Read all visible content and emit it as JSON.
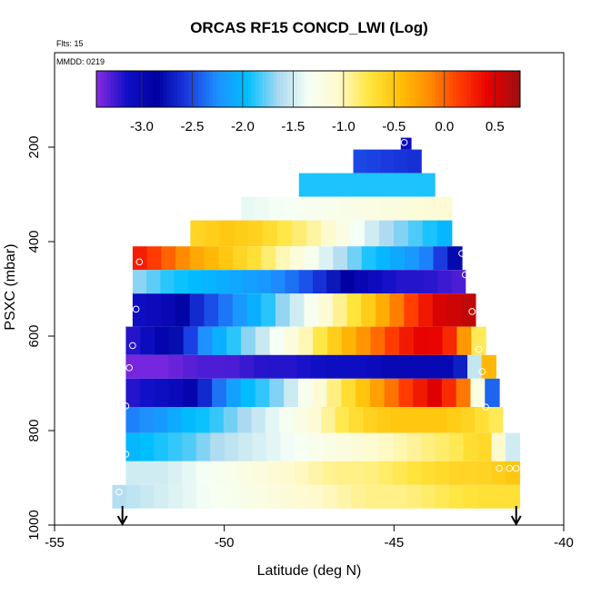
{
  "chart_data": {
    "type": "heatmap",
    "title": "ORCAS RF15 CONCD_LWI (Log)",
    "corner_labels": [
      "Flts: 15",
      "MMDD: 0219"
    ],
    "xlabel": "Latitude (deg N)",
    "ylabel": "PSXC (mbar)",
    "xlim": [
      -55,
      -40
    ],
    "ylim": [
      1000,
      0
    ],
    "x_ticks": [
      -55,
      -50,
      -45,
      -40
    ],
    "y_ticks": [
      200,
      400,
      600,
      800,
      1000
    ],
    "colorbar": {
      "min": -3.45,
      "max": 0.75,
      "ticks": [
        -3.0,
        -2.5,
        -2.0,
        -1.5,
        -1.0,
        -0.5,
        0.0,
        0.5
      ],
      "tick_labels": [
        "-3.0",
        "-2.5",
        "-2.0",
        "-1.5",
        "-1.0",
        "-0.5",
        "0.0",
        "0.5"
      ],
      "colors": [
        "#8a2be2",
        "#1010c8",
        "#0000a0",
        "#1a3ae0",
        "#1e90ff",
        "#00bfff",
        "#a8d8f0",
        "#f5fff5",
        "#fffacd",
        "#ffe640",
        "#ffc107",
        "#ff8c00",
        "#ff3b00",
        "#e60000",
        "#9b1010"
      ]
    },
    "bands": [
      {
        "p": [
          180,
          205
        ],
        "lat": [
          -44.8,
          -44.5
        ],
        "v": [
          -3.1,
          -3.1
        ]
      },
      {
        "p": [
          205,
          255
        ],
        "lat": [
          -46.2,
          -44.2
        ],
        "v": [
          -2.5,
          -2.6
        ]
      },
      {
        "p": [
          255,
          305
        ],
        "lat": [
          -47.8,
          -43.8
        ],
        "v": [
          -1.9,
          -1.9
        ]
      },
      {
        "p": [
          305,
          355
        ],
        "lat": [
          -49.5,
          -43.3
        ],
        "v": [
          -1.4,
          -1.1
        ]
      },
      {
        "p": [
          355,
          410
        ],
        "lat": [
          -51.0,
          -43.3
        ],
        "v": [
          -0.6,
          -0.5,
          -0.6,
          -0.8,
          -1.0,
          -1.3,
          -1.6,
          -1.8,
          -2.0
        ]
      },
      {
        "p": [
          410,
          460
        ],
        "lat": [
          -52.7,
          -43.0
        ],
        "v": [
          0.3,
          0.0,
          -0.3,
          -0.5,
          -0.7,
          -1.0,
          -1.3,
          -1.6,
          -1.9,
          -2.1,
          -2.3,
          -2.8
        ]
      },
      {
        "p": [
          460,
          510
        ],
        "lat": [
          -52.7,
          -42.9
        ],
        "v": [
          -1.7,
          -1.9,
          -2.0,
          -2.1,
          -2.2,
          -2.4,
          -2.7,
          -3.0,
          -3.2,
          -3.2,
          -3.3
        ]
      },
      {
        "p": [
          510,
          580
        ],
        "lat": [
          -52.7,
          -42.6
        ],
        "v": [
          -3.1,
          -3.0,
          -2.6,
          -2.3,
          -2.0,
          -1.6,
          -1.2,
          -0.8,
          -0.4,
          0.1,
          0.5,
          0.6
        ]
      },
      {
        "p": [
          580,
          640
        ],
        "lat": [
          -52.9,
          -42.3
        ],
        "v": [
          -3.2,
          -3.0,
          -2.7,
          -2.2,
          -1.9,
          -1.6,
          -1.3,
          -1.0,
          -0.6,
          -0.3,
          0.0,
          0.3,
          0.5,
          0.2,
          -0.8
        ]
      },
      {
        "p": [
          640,
          690
        ],
        "lat": [
          -52.9,
          -42.0
        ],
        "v": [
          -3.4,
          -3.4,
          -3.3,
          -3.3,
          -3.2,
          -3.2,
          -3.1,
          -3.1,
          -3.0,
          -3.0,
          -3.0,
          -0.4
        ]
      },
      {
        "p": [
          690,
          750
        ],
        "lat": [
          -52.9,
          -41.9
        ],
        "v": [
          -3.2,
          -3.1,
          -3.0,
          -2.4,
          -2.0,
          -1.8,
          -1.4,
          -1.0,
          -0.6,
          -0.2,
          0.2,
          0.5,
          -0.1,
          -2.4
        ]
      },
      {
        "p": [
          750,
          805
        ],
        "lat": [
          -52.9,
          -41.8
        ],
        "v": [
          -2.3,
          -2.2,
          -2.0,
          -1.9,
          -1.7,
          -1.5,
          -1.3,
          -1.1,
          -0.8,
          -0.6,
          -0.5,
          -0.5,
          -0.5,
          -0.6,
          -0.8
        ]
      },
      {
        "p": [
          805,
          865
        ],
        "lat": [
          -52.9,
          -41.3
        ],
        "v": [
          -2.0,
          -1.9,
          -1.8,
          -1.6,
          -1.5,
          -1.4,
          -1.3,
          -1.2,
          -1.1,
          -1.0,
          -0.9,
          -0.8,
          -0.6,
          -1.5
        ]
      },
      {
        "p": [
          865,
          915
        ],
        "lat": [
          -52.9,
          -41.3
        ],
        "v": [
          -1.5,
          -1.5,
          -1.4,
          -1.3,
          -1.2,
          -1.1,
          -1.0,
          -0.9,
          -0.9,
          -0.8,
          -0.7,
          -0.6,
          -0.6,
          -0.5
        ]
      },
      {
        "p": [
          915,
          965
        ],
        "lat": [
          -53.3,
          -41.3
        ],
        "v": [
          -1.6,
          -1.5,
          -1.4,
          -1.3,
          -1.2,
          -1.1,
          -1.0,
          -0.9,
          -0.9,
          -0.8,
          -0.7,
          -0.7
        ]
      }
    ],
    "markers": [
      {
        "lat": -44.7,
        "p": 190
      },
      {
        "lat": -43.0,
        "p": 425
      },
      {
        "lat": -52.5,
        "p": 443
      },
      {
        "lat": -42.9,
        "p": 470
      },
      {
        "lat": -52.6,
        "p": 543
      },
      {
        "lat": -42.7,
        "p": 548
      },
      {
        "lat": -52.7,
        "p": 620
      },
      {
        "lat": -42.5,
        "p": 628
      },
      {
        "lat": -52.8,
        "p": 667
      },
      {
        "lat": -42.4,
        "p": 675
      },
      {
        "lat": -52.9,
        "p": 748
      },
      {
        "lat": -42.3,
        "p": 750
      },
      {
        "lat": -52.9,
        "p": 850
      },
      {
        "lat": -41.9,
        "p": 880
      },
      {
        "lat": -41.6,
        "p": 880
      },
      {
        "lat": -41.4,
        "p": 880
      },
      {
        "lat": -53.1,
        "p": 930
      }
    ],
    "arrows": [
      -53.0,
      -41.4
    ]
  }
}
